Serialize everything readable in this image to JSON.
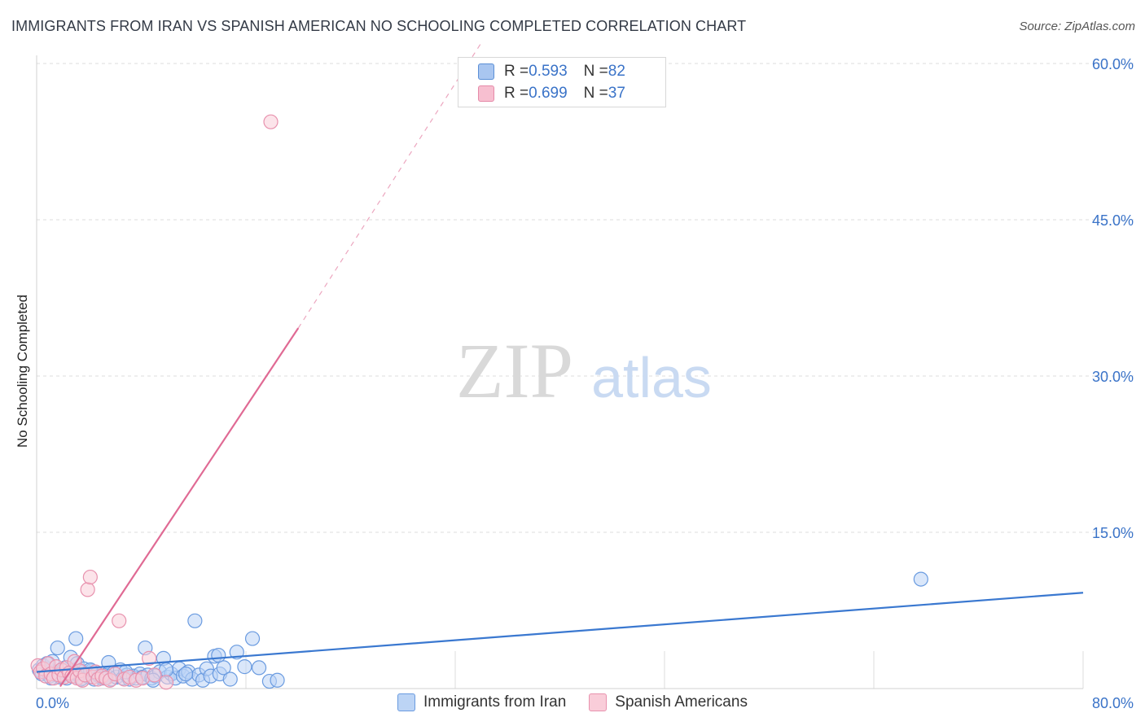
{
  "header": {
    "title": "IMMIGRANTS FROM IRAN VS SPANISH AMERICAN NO SCHOOLING COMPLETED CORRELATION CHART",
    "source": "Source: ZipAtlas.com"
  },
  "watermark": {
    "zip": "ZIP",
    "atlas": "atlas"
  },
  "stats": [
    {
      "r_label": "R = ",
      "r_value": "0.593",
      "n_label": "N = ",
      "n_value": "82",
      "color": "#a9c6f0",
      "border": "#5b8fd6"
    },
    {
      "r_label": "R = ",
      "r_value": "0.699",
      "n_label": "N = ",
      "n_value": "37",
      "color": "#f7bfd0",
      "border": "#e58aa8"
    }
  ],
  "legend": [
    {
      "label": "Immigrants from Iran",
      "color": "#bcd4f5",
      "border": "#6a9be0"
    },
    {
      "label": "Spanish Americans",
      "color": "#f9cdd9",
      "border": "#e892ae"
    }
  ],
  "chart_data": {
    "type": "scatter",
    "ylabel": "No Schooling Completed",
    "xlim": [
      0,
      80
    ],
    "ylim": [
      0,
      60
    ],
    "x_tick_labels": [
      "0.0%",
      "80.0%"
    ],
    "y_ticks": [
      15,
      30,
      45,
      60
    ],
    "y_tick_labels": [
      "15.0%",
      "30.0%",
      "45.0%",
      "60.0%"
    ],
    "grid": true,
    "legend_position": "bottom",
    "series": [
      {
        "name": "Immigrants from Iran",
        "color": "#6a9be0",
        "fill": "#bcd4f5",
        "trend": {
          "x0": 0.0,
          "y0": 1.6,
          "x1": 80.0,
          "y1": 9.2,
          "color": "#3a78d0",
          "dashed_after": null
        },
        "points": [
          [
            0.2,
            1.8
          ],
          [
            0.4,
            1.4
          ],
          [
            0.5,
            2.2
          ],
          [
            0.7,
            1.5
          ],
          [
            0.9,
            1.9
          ],
          [
            1.0,
            1.2
          ],
          [
            1.2,
            2.6
          ],
          [
            1.3,
            1.6
          ],
          [
            1.5,
            1.3
          ],
          [
            1.6,
            3.9
          ],
          [
            1.8,
            1.1
          ],
          [
            2.0,
            1.7
          ],
          [
            2.2,
            2.0
          ],
          [
            2.3,
            1.0
          ],
          [
            2.5,
            1.4
          ],
          [
            2.6,
            3.0
          ],
          [
            2.8,
            1.2
          ],
          [
            3.0,
            4.8
          ],
          [
            3.1,
            2.4
          ],
          [
            3.3,
            1.6
          ],
          [
            3.5,
            1.0
          ],
          [
            3.6,
            1.9
          ],
          [
            3.8,
            1.3
          ],
          [
            4.0,
            1.1
          ],
          [
            4.2,
            1.7
          ],
          [
            4.4,
            0.9
          ],
          [
            4.6,
            1.4
          ],
          [
            4.8,
            1.2
          ],
          [
            5.0,
            1.0
          ],
          [
            5.3,
            1.3
          ],
          [
            5.5,
            2.5
          ],
          [
            5.7,
            0.9
          ],
          [
            5.9,
            1.5
          ],
          [
            6.1,
            1.1
          ],
          [
            6.4,
            1.8
          ],
          [
            6.6,
            1.0
          ],
          [
            6.9,
            1.3
          ],
          [
            7.1,
            0.9
          ],
          [
            7.4,
            1.2
          ],
          [
            7.6,
            1.0
          ],
          [
            7.9,
            1.4
          ],
          [
            8.1,
            1.1
          ],
          [
            8.3,
            3.9
          ],
          [
            8.5,
            1.3
          ],
          [
            8.8,
            1.0
          ],
          [
            9.1,
            1.2
          ],
          [
            9.4,
            1.6
          ],
          [
            9.7,
            2.9
          ],
          [
            10.0,
            1.1
          ],
          [
            10.3,
            1.4
          ],
          [
            10.6,
            1.0
          ],
          [
            10.9,
            1.9
          ],
          [
            11.2,
            1.2
          ],
          [
            11.6,
            1.6
          ],
          [
            11.9,
            0.9
          ],
          [
            12.1,
            6.5
          ],
          [
            12.4,
            1.3
          ],
          [
            12.7,
            0.8
          ],
          [
            13.0,
            1.9
          ],
          [
            13.3,
            1.2
          ],
          [
            13.6,
            3.1
          ],
          [
            14.0,
            1.4
          ],
          [
            14.3,
            2.0
          ],
          [
            14.8,
            0.9
          ],
          [
            15.3,
            3.5
          ],
          [
            15.9,
            2.1
          ],
          [
            16.5,
            4.8
          ],
          [
            17.0,
            2.0
          ],
          [
            17.8,
            0.7
          ],
          [
            18.4,
            0.8
          ],
          [
            5.2,
            1.0
          ],
          [
            4.1,
            1.8
          ],
          [
            2.9,
            1.5
          ],
          [
            1.1,
            1.0
          ],
          [
            0.8,
            2.4
          ],
          [
            3.4,
            0.9
          ],
          [
            6.8,
            1.6
          ],
          [
            8.9,
            0.8
          ],
          [
            9.9,
            1.8
          ],
          [
            11.4,
            1.4
          ],
          [
            13.9,
            3.2
          ],
          [
            67.6,
            10.5
          ]
        ]
      },
      {
        "name": "Spanish Americans",
        "color": "#e892ae",
        "fill": "#f9cdd9",
        "trend": {
          "x0": 1.8,
          "y0": 0.2,
          "x1": 20.0,
          "y1": 34.6,
          "dash_x1": 34.0,
          "dash_y1": 62.0,
          "color": "#e06a94"
        },
        "points": [
          [
            0.1,
            2.2
          ],
          [
            0.3,
            1.6
          ],
          [
            0.5,
            1.9
          ],
          [
            0.7,
            1.2
          ],
          [
            0.9,
            2.4
          ],
          [
            1.1,
            1.4
          ],
          [
            1.3,
            1.0
          ],
          [
            1.5,
            2.1
          ],
          [
            1.7,
            1.3
          ],
          [
            1.9,
            1.8
          ],
          [
            2.1,
            1.1
          ],
          [
            2.3,
            2.0
          ],
          [
            2.5,
            1.5
          ],
          [
            2.7,
            1.2
          ],
          [
            2.9,
            2.6
          ],
          [
            3.1,
            1.0
          ],
          [
            3.3,
            1.7
          ],
          [
            3.5,
            0.8
          ],
          [
            3.7,
            1.3
          ],
          [
            3.9,
            9.5
          ],
          [
            4.1,
            10.7
          ],
          [
            4.3,
            1.1
          ],
          [
            4.5,
            1.6
          ],
          [
            4.7,
            0.9
          ],
          [
            5.0,
            1.2
          ],
          [
            5.3,
            1.0
          ],
          [
            5.6,
            0.8
          ],
          [
            6.0,
            1.4
          ],
          [
            6.3,
            6.5
          ],
          [
            6.7,
            0.9
          ],
          [
            7.1,
            1.1
          ],
          [
            7.6,
            0.8
          ],
          [
            8.1,
            1.0
          ],
          [
            8.6,
            2.9
          ],
          [
            9.0,
            1.3
          ],
          [
            9.9,
            0.6
          ],
          [
            17.9,
            54.4
          ]
        ]
      }
    ]
  }
}
